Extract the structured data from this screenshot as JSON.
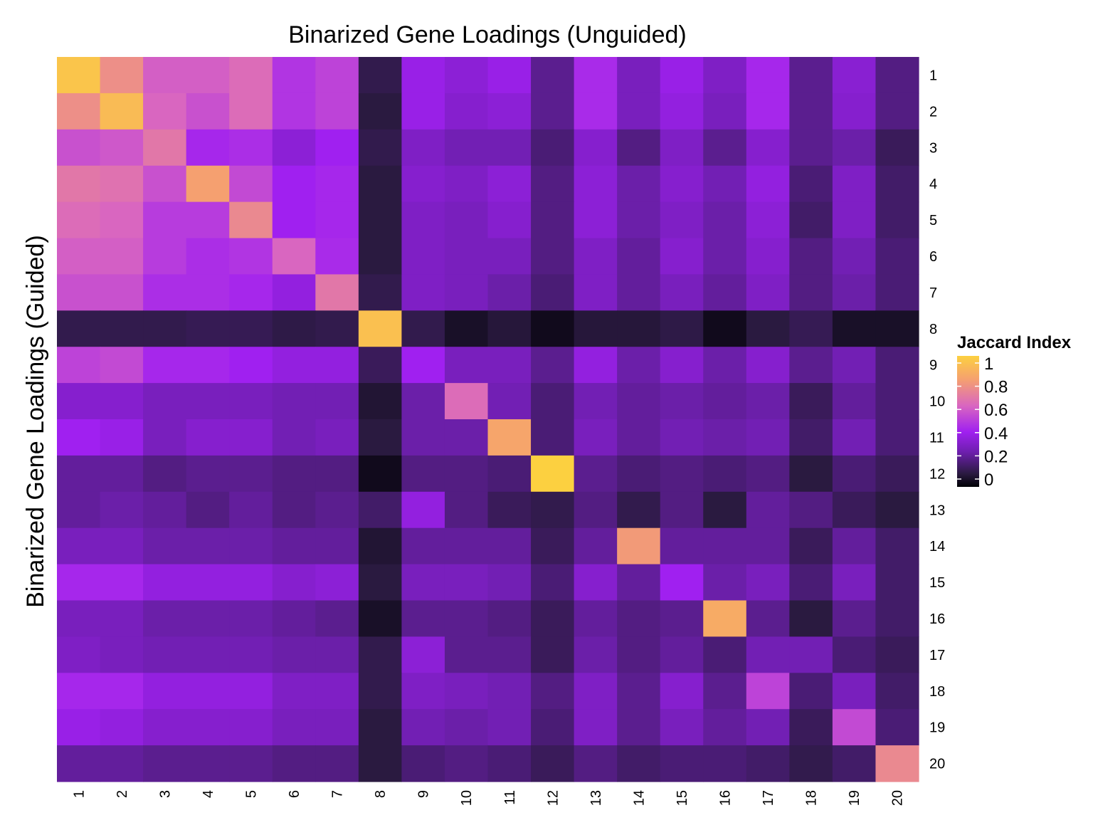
{
  "chart_data": {
    "type": "heatmap",
    "title": "Binarized Gene Loadings (Unguided)",
    "ylabel": "Binarized Gene Loadings (Guided)",
    "xlabel": "",
    "x_categories": [
      "1",
      "2",
      "3",
      "4",
      "5",
      "6",
      "7",
      "8",
      "9",
      "10",
      "11",
      "12",
      "13",
      "14",
      "15",
      "16",
      "17",
      "18",
      "19",
      "20"
    ],
    "y_categories": [
      "1",
      "2",
      "3",
      "4",
      "5",
      "6",
      "7",
      "8",
      "9",
      "10",
      "11",
      "12",
      "13",
      "14",
      "15",
      "16",
      "17",
      "18",
      "19",
      "20"
    ],
    "y_axis_position": "right",
    "legend": {
      "title": "Jaccard Index",
      "placement": "right",
      "ticks": [
        "1",
        "0.8",
        "0.6",
        "0.4",
        "0.2",
        "0"
      ],
      "tick_values": [
        1,
        0.8,
        0.6,
        0.4,
        0.2,
        0
      ],
      "range": [
        0,
        1
      ]
    },
    "colors": {
      "palette_stops": [
        "#000004",
        "#2a1a40",
        "#6f1fb0",
        "#a020f0",
        "#d966c0",
        "#f5a070",
        "#fcd040"
      ],
      "palette_positions": [
        0,
        0.1,
        0.27,
        0.42,
        0.62,
        0.82,
        1.0
      ]
    },
    "values": [
      [
        0.96,
        0.76,
        0.6,
        0.6,
        0.64,
        0.48,
        0.52,
        0.12,
        0.4,
        0.36,
        0.4,
        0.22,
        0.45,
        0.3,
        0.4,
        0.32,
        0.44,
        0.22,
        0.35,
        0.2
      ],
      [
        0.76,
        0.92,
        0.62,
        0.56,
        0.64,
        0.48,
        0.52,
        0.1,
        0.4,
        0.34,
        0.36,
        0.22,
        0.45,
        0.3,
        0.38,
        0.3,
        0.44,
        0.22,
        0.34,
        0.2
      ],
      [
        0.56,
        0.58,
        0.68,
        0.44,
        0.46,
        0.36,
        0.42,
        0.12,
        0.32,
        0.28,
        0.28,
        0.18,
        0.34,
        0.2,
        0.32,
        0.22,
        0.34,
        0.22,
        0.26,
        0.14
      ],
      [
        0.68,
        0.66,
        0.56,
        0.82,
        0.54,
        0.42,
        0.44,
        0.1,
        0.34,
        0.32,
        0.36,
        0.2,
        0.36,
        0.26,
        0.34,
        0.28,
        0.38,
        0.18,
        0.32,
        0.16
      ],
      [
        0.64,
        0.62,
        0.5,
        0.5,
        0.74,
        0.42,
        0.44,
        0.1,
        0.32,
        0.3,
        0.34,
        0.2,
        0.36,
        0.26,
        0.32,
        0.26,
        0.36,
        0.16,
        0.32,
        0.16
      ],
      [
        0.6,
        0.6,
        0.5,
        0.46,
        0.48,
        0.62,
        0.45,
        0.1,
        0.32,
        0.3,
        0.3,
        0.2,
        0.32,
        0.24,
        0.34,
        0.26,
        0.34,
        0.2,
        0.28,
        0.18
      ],
      [
        0.56,
        0.56,
        0.46,
        0.46,
        0.44,
        0.38,
        0.68,
        0.12,
        0.32,
        0.3,
        0.26,
        0.18,
        0.32,
        0.24,
        0.3,
        0.24,
        0.32,
        0.2,
        0.26,
        0.18
      ],
      [
        0.12,
        0.12,
        0.12,
        0.13,
        0.13,
        0.11,
        0.12,
        0.94,
        0.12,
        0.06,
        0.09,
        0.04,
        0.09,
        0.09,
        0.11,
        0.04,
        0.1,
        0.13,
        0.06,
        0.06
      ],
      [
        0.52,
        0.54,
        0.44,
        0.44,
        0.42,
        0.38,
        0.38,
        0.14,
        0.42,
        0.3,
        0.3,
        0.22,
        0.38,
        0.26,
        0.34,
        0.26,
        0.34,
        0.22,
        0.28,
        0.18
      ],
      [
        0.34,
        0.34,
        0.3,
        0.3,
        0.3,
        0.28,
        0.28,
        0.08,
        0.26,
        0.64,
        0.28,
        0.18,
        0.28,
        0.24,
        0.26,
        0.24,
        0.26,
        0.14,
        0.24,
        0.18
      ],
      [
        0.42,
        0.4,
        0.3,
        0.34,
        0.34,
        0.28,
        0.3,
        0.1,
        0.26,
        0.26,
        0.84,
        0.18,
        0.3,
        0.24,
        0.28,
        0.26,
        0.28,
        0.16,
        0.28,
        0.18
      ],
      [
        0.24,
        0.24,
        0.2,
        0.22,
        0.22,
        0.2,
        0.2,
        0.04,
        0.2,
        0.2,
        0.18,
        1.0,
        0.22,
        0.18,
        0.2,
        0.18,
        0.2,
        0.1,
        0.18,
        0.14
      ],
      [
        0.24,
        0.26,
        0.24,
        0.2,
        0.24,
        0.2,
        0.22,
        0.16,
        0.38,
        0.2,
        0.14,
        0.12,
        0.2,
        0.12,
        0.2,
        0.1,
        0.24,
        0.2,
        0.14,
        0.1
      ],
      [
        0.3,
        0.3,
        0.26,
        0.26,
        0.26,
        0.24,
        0.24,
        0.08,
        0.24,
        0.24,
        0.24,
        0.14,
        0.24,
        0.8,
        0.24,
        0.24,
        0.24,
        0.14,
        0.24,
        0.16
      ],
      [
        0.44,
        0.44,
        0.38,
        0.38,
        0.38,
        0.34,
        0.36,
        0.1,
        0.3,
        0.3,
        0.28,
        0.18,
        0.34,
        0.24,
        0.42,
        0.26,
        0.3,
        0.18,
        0.3,
        0.16
      ],
      [
        0.3,
        0.3,
        0.26,
        0.26,
        0.26,
        0.24,
        0.22,
        0.06,
        0.22,
        0.22,
        0.2,
        0.14,
        0.24,
        0.2,
        0.22,
        0.86,
        0.22,
        0.1,
        0.22,
        0.16
      ],
      [
        0.32,
        0.3,
        0.28,
        0.28,
        0.28,
        0.26,
        0.26,
        0.12,
        0.36,
        0.22,
        0.22,
        0.14,
        0.26,
        0.2,
        0.24,
        0.18,
        0.28,
        0.28,
        0.18,
        0.14
      ],
      [
        0.44,
        0.44,
        0.38,
        0.38,
        0.38,
        0.32,
        0.32,
        0.12,
        0.32,
        0.3,
        0.28,
        0.2,
        0.32,
        0.22,
        0.34,
        0.22,
        0.52,
        0.18,
        0.3,
        0.16
      ],
      [
        0.4,
        0.38,
        0.34,
        0.34,
        0.34,
        0.3,
        0.3,
        0.1,
        0.28,
        0.26,
        0.28,
        0.18,
        0.32,
        0.22,
        0.3,
        0.24,
        0.28,
        0.14,
        0.54,
        0.18
      ],
      [
        0.24,
        0.24,
        0.22,
        0.22,
        0.22,
        0.2,
        0.2,
        0.1,
        0.18,
        0.2,
        0.18,
        0.14,
        0.2,
        0.16,
        0.18,
        0.18,
        0.16,
        0.12,
        0.16,
        0.74
      ]
    ]
  }
}
